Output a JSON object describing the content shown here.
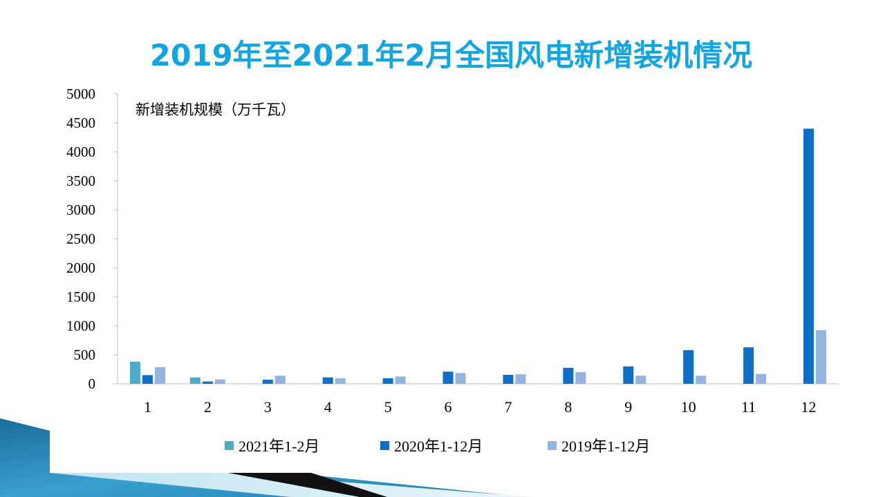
{
  "slide": {
    "title": "2019年至2021年2月全国风电新增装机情况"
  },
  "colors": {
    "title": "#12a5e0",
    "series_2021": "#4bacc6",
    "series_2020": "#0f6fc6",
    "series_2019": "#95b3e0",
    "deco_teal": "#1f7fb0",
    "deco_dark": "#111111"
  },
  "chart_data": {
    "type": "bar",
    "title": "",
    "ylabel": "新增装机规模（万千瓦）",
    "xlabel": "",
    "ylim": [
      0,
      5000
    ],
    "yticks": [
      0,
      500,
      1000,
      1500,
      2000,
      2500,
      3000,
      3500,
      4000,
      4500,
      5000
    ],
    "categories": [
      "1",
      "2",
      "3",
      "4",
      "5",
      "6",
      "7",
      "8",
      "9",
      "10",
      "11",
      "12"
    ],
    "grid": false,
    "legend_position": "bottom",
    "series": [
      {
        "name": "2021年1-2月",
        "color": "#4bacc6",
        "values": [
          380,
          110,
          null,
          null,
          null,
          null,
          null,
          null,
          null,
          null,
          null,
          null
        ]
      },
      {
        "name": "2020年1-12月",
        "color": "#0f6fc6",
        "values": [
          150,
          40,
          70,
          110,
          95,
          210,
          155,
          275,
          300,
          580,
          630,
          4400
        ]
      },
      {
        "name": "2019年1-12月",
        "color": "#95b3e0",
        "values": [
          285,
          75,
          140,
          95,
          125,
          185,
          165,
          200,
          140,
          140,
          170,
          925
        ]
      }
    ]
  }
}
